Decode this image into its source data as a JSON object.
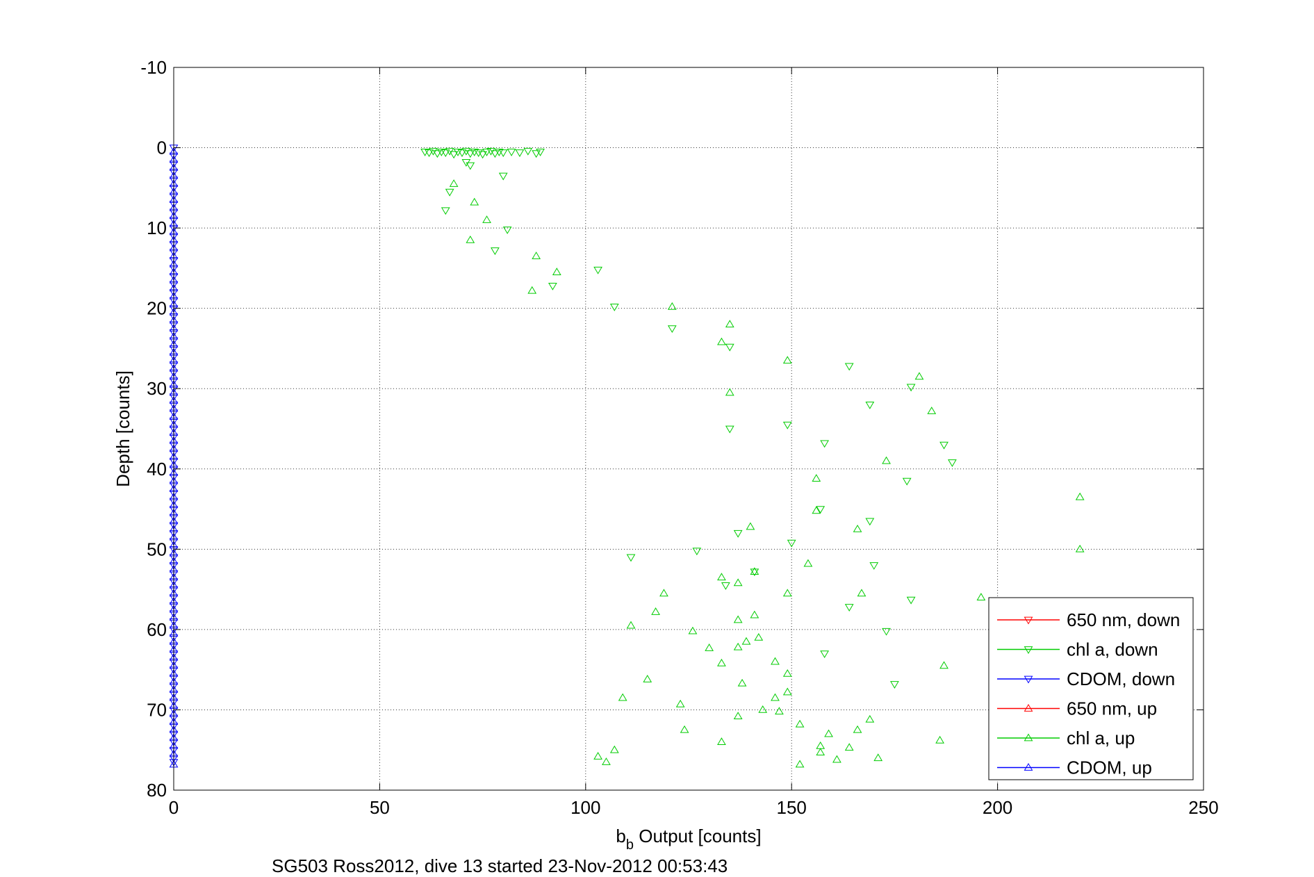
{
  "chart_data": {
    "type": "scatter",
    "xlabel_main": "b",
    "xlabel_sub": "b",
    "xlabel_rest": " Output [counts]",
    "ylabel": "Depth [counts]",
    "caption": "SG503 Ross2012, dive 13 started 23-Nov-2012 00:53:43",
    "xlim": [
      0,
      250
    ],
    "ylim": [
      -10,
      80
    ],
    "y_reversed": true,
    "grid": true,
    "legend_position": "bottom-right",
    "xticks": [
      0,
      50,
      100,
      150,
      200,
      250
    ],
    "xtick_labels": [
      "0",
      "50",
      "100",
      "150",
      "200",
      "250"
    ],
    "yticks": [
      -10,
      0,
      10,
      20,
      30,
      40,
      50,
      60,
      70,
      80
    ],
    "ytick_labels": [
      "-10",
      "0",
      "10",
      "20",
      "30",
      "40",
      "50",
      "60",
      "70",
      "80"
    ],
    "series": [
      {
        "name": "650 nm, down",
        "color": "#ff0000",
        "marker": "triangle-down",
        "points": []
      },
      {
        "name": "chl a, down",
        "color": "#00cc00",
        "marker": "triangle-down",
        "points": [
          [
            61,
            0.5
          ],
          [
            62,
            0.6
          ],
          [
            63,
            0.4
          ],
          [
            64,
            0.7
          ],
          [
            65,
            0.5
          ],
          [
            66,
            0.6
          ],
          [
            67,
            0.4
          ],
          [
            68,
            0.8
          ],
          [
            69,
            0.5
          ],
          [
            70,
            0.6
          ],
          [
            71,
            0.4
          ],
          [
            72,
            0.7
          ],
          [
            73,
            0.5
          ],
          [
            74,
            0.6
          ],
          [
            75,
            0.8
          ],
          [
            76,
            0.5
          ],
          [
            77,
            0.4
          ],
          [
            78,
            0.7
          ],
          [
            79,
            0.5
          ],
          [
            80,
            0.6
          ],
          [
            82,
            0.5
          ],
          [
            84,
            0.6
          ],
          [
            86,
            0.4
          ],
          [
            88,
            0.7
          ],
          [
            89,
            0.5
          ],
          [
            71,
            1.8
          ],
          [
            72,
            2.2
          ],
          [
            80,
            3.5
          ],
          [
            67,
            5.5
          ],
          [
            66,
            7.8
          ],
          [
            81,
            10.2
          ],
          [
            78,
            12.8
          ],
          [
            92,
            17.2
          ],
          [
            103,
            15.2
          ],
          [
            107,
            19.8
          ],
          [
            121,
            22.5
          ],
          [
            135,
            24.8
          ],
          [
            149,
            34.5
          ],
          [
            135,
            35.0
          ],
          [
            164,
            27.2
          ],
          [
            169,
            32.0
          ],
          [
            179,
            29.8
          ],
          [
            158,
            36.8
          ],
          [
            187,
            37.0
          ],
          [
            189,
            39.2
          ],
          [
            178,
            41.5
          ],
          [
            157,
            45.0
          ],
          [
            137,
            48.0
          ],
          [
            150,
            49.2
          ],
          [
            111,
            51.0
          ],
          [
            127,
            50.2
          ],
          [
            170,
            52.0
          ],
          [
            169,
            46.5
          ],
          [
            134,
            54.5
          ],
          [
            141,
            52.8
          ],
          [
            179,
            56.3
          ],
          [
            158,
            63.0
          ],
          [
            173,
            60.2
          ],
          [
            175,
            66.8
          ],
          [
            164,
            57.2
          ]
        ]
      },
      {
        "name": "CDOM, down",
        "color": "#0000ff",
        "marker": "triangle-down",
        "points": [
          [
            0,
            0.0
          ],
          [
            0,
            1.0
          ],
          [
            0,
            2.0
          ],
          [
            0,
            3.0
          ],
          [
            0,
            4.0
          ],
          [
            0,
            5.0
          ],
          [
            0,
            6.0
          ],
          [
            0,
            7.0
          ],
          [
            0,
            8.0
          ],
          [
            0,
            9.0
          ],
          [
            0,
            10.0
          ],
          [
            0,
            11.0
          ],
          [
            0,
            12.0
          ],
          [
            0,
            13.0
          ],
          [
            0,
            14.0
          ],
          [
            0,
            15.0
          ],
          [
            0,
            16.0
          ],
          [
            0,
            17.0
          ],
          [
            0,
            18.0
          ],
          [
            0,
            19.0
          ],
          [
            0,
            20.0
          ],
          [
            0,
            21.0
          ],
          [
            0,
            22.0
          ],
          [
            0,
            23.0
          ],
          [
            0,
            24.0
          ],
          [
            0,
            25.0
          ],
          [
            0,
            26.0
          ],
          [
            0,
            27.0
          ],
          [
            0,
            28.0
          ],
          [
            0,
            29.0
          ],
          [
            0,
            30.0
          ],
          [
            0,
            31.0
          ],
          [
            0,
            32.0
          ],
          [
            0,
            33.0
          ],
          [
            0,
            34.0
          ],
          [
            0,
            35.0
          ],
          [
            0,
            36.0
          ],
          [
            0,
            37.0
          ],
          [
            0,
            38.0
          ],
          [
            0,
            39.0
          ],
          [
            0,
            40.0
          ],
          [
            0,
            41.0
          ],
          [
            0,
            42.0
          ],
          [
            0,
            43.0
          ],
          [
            0,
            44.0
          ],
          [
            0,
            45.0
          ],
          [
            0,
            46.0
          ],
          [
            0,
            47.0
          ],
          [
            0,
            48.0
          ],
          [
            0,
            49.0
          ],
          [
            0,
            50.0
          ],
          [
            0,
            51.0
          ],
          [
            0,
            52.0
          ],
          [
            0,
            53.0
          ],
          [
            0,
            54.0
          ],
          [
            0,
            55.0
          ],
          [
            0,
            56.0
          ],
          [
            0,
            57.0
          ],
          [
            0,
            58.0
          ],
          [
            0,
            59.0
          ],
          [
            0,
            60.0
          ],
          [
            0,
            61.0
          ],
          [
            0,
            62.0
          ],
          [
            0,
            63.0
          ],
          [
            0,
            64.0
          ],
          [
            0,
            65.0
          ],
          [
            0,
            66.0
          ],
          [
            0,
            67.0
          ],
          [
            0,
            68.0
          ],
          [
            0,
            69.0
          ],
          [
            0,
            70.0
          ],
          [
            0,
            71.0
          ],
          [
            0,
            72.0
          ],
          [
            0,
            73.0
          ],
          [
            0,
            74.0
          ],
          [
            0,
            75.0
          ],
          [
            0,
            76.0
          ],
          [
            0,
            76.5
          ]
        ]
      },
      {
        "name": "650 nm, up",
        "color": "#ff0000",
        "marker": "triangle-up",
        "points": []
      },
      {
        "name": "chl a, up",
        "color": "#00cc00",
        "marker": "triangle-up",
        "points": [
          [
            68,
            4.5
          ],
          [
            73,
            6.8
          ],
          [
            76,
            9.0
          ],
          [
            72,
            11.5
          ],
          [
            88,
            13.5
          ],
          [
            93,
            15.5
          ],
          [
            87,
            17.8
          ],
          [
            121,
            19.8
          ],
          [
            135,
            22.0
          ],
          [
            133,
            24.2
          ],
          [
            149,
            26.5
          ],
          [
            135,
            30.5
          ],
          [
            181,
            28.5
          ],
          [
            184,
            32.8
          ],
          [
            173,
            39.0
          ],
          [
            156,
            41.2
          ],
          [
            156,
            45.2
          ],
          [
            140,
            47.2
          ],
          [
            166,
            47.5
          ],
          [
            154,
            51.8
          ],
          [
            220,
            43.5
          ],
          [
            220,
            50.0
          ],
          [
            133,
            53.5
          ],
          [
            137,
            54.2
          ],
          [
            141,
            52.8
          ],
          [
            119,
            55.5
          ],
          [
            117,
            57.8
          ],
          [
            111,
            59.5
          ],
          [
            126,
            60.2
          ],
          [
            130,
            62.3
          ],
          [
            137,
            62.2
          ],
          [
            139,
            61.5
          ],
          [
            141,
            58.2
          ],
          [
            137,
            58.8
          ],
          [
            142,
            61.0
          ],
          [
            149,
            55.5
          ],
          [
            167,
            55.5
          ],
          [
            146,
            64.0
          ],
          [
            149,
            65.5
          ],
          [
            133,
            64.2
          ],
          [
            138,
            66.7
          ],
          [
            115,
            66.2
          ],
          [
            109,
            68.5
          ],
          [
            123,
            69.3
          ],
          [
            146,
            68.5
          ],
          [
            149,
            67.8
          ],
          [
            143,
            70.0
          ],
          [
            147,
            70.2
          ],
          [
            137,
            70.8
          ],
          [
            124,
            72.5
          ],
          [
            133,
            74.0
          ],
          [
            152,
            71.8
          ],
          [
            159,
            73.0
          ],
          [
            157,
            74.5
          ],
          [
            157,
            75.3
          ],
          [
            164,
            74.7
          ],
          [
            166,
            72.5
          ],
          [
            169,
            71.2
          ],
          [
            161,
            76.2
          ],
          [
            171,
            76.0
          ],
          [
            186,
            73.8
          ],
          [
            187,
            64.5
          ],
          [
            196,
            56.0
          ],
          [
            103,
            75.8
          ],
          [
            105,
            76.5
          ],
          [
            107,
            75.0
          ],
          [
            152,
            76.8
          ]
        ]
      },
      {
        "name": "CDOM, up",
        "color": "#0000ff",
        "marker": "triangle-up",
        "points": [
          [
            0,
            0.5
          ],
          [
            0,
            1.5
          ],
          [
            0,
            2.5
          ],
          [
            0,
            3.5
          ],
          [
            0,
            4.5
          ],
          [
            0,
            5.5
          ],
          [
            0,
            6.5
          ],
          [
            0,
            7.5
          ],
          [
            0,
            8.5
          ],
          [
            0,
            9.5
          ],
          [
            0,
            10.5
          ],
          [
            0,
            11.5
          ],
          [
            0,
            12.5
          ],
          [
            0,
            13.5
          ],
          [
            0,
            14.5
          ],
          [
            0,
            15.5
          ],
          [
            0,
            16.5
          ],
          [
            0,
            17.5
          ],
          [
            0,
            18.5
          ],
          [
            0,
            19.5
          ],
          [
            0,
            20.5
          ],
          [
            0,
            21.5
          ],
          [
            0,
            22.5
          ],
          [
            0,
            23.5
          ],
          [
            0,
            24.5
          ],
          [
            0,
            25.5
          ],
          [
            0,
            26.5
          ],
          [
            0,
            27.5
          ],
          [
            0,
            28.5
          ],
          [
            0,
            29.5
          ],
          [
            0,
            30.5
          ],
          [
            0,
            31.5
          ],
          [
            0,
            32.5
          ],
          [
            0,
            33.5
          ],
          [
            0,
            34.5
          ],
          [
            0,
            35.5
          ],
          [
            0,
            36.5
          ],
          [
            0,
            37.5
          ],
          [
            0,
            38.5
          ],
          [
            0,
            39.5
          ],
          [
            0,
            40.5
          ],
          [
            0,
            41.5
          ],
          [
            0,
            42.5
          ],
          [
            0,
            43.5
          ],
          [
            0,
            44.5
          ],
          [
            0,
            45.5
          ],
          [
            0,
            46.5
          ],
          [
            0,
            47.5
          ],
          [
            0,
            48.5
          ],
          [
            0,
            49.5
          ],
          [
            0,
            50.5
          ],
          [
            0,
            51.5
          ],
          [
            0,
            52.5
          ],
          [
            0,
            53.5
          ],
          [
            0,
            54.5
          ],
          [
            0,
            55.5
          ],
          [
            0,
            56.5
          ],
          [
            0,
            57.5
          ],
          [
            0,
            58.5
          ],
          [
            0,
            59.5
          ],
          [
            0,
            60.5
          ],
          [
            0,
            61.5
          ],
          [
            0,
            62.5
          ],
          [
            0,
            63.5
          ],
          [
            0,
            64.5
          ],
          [
            0,
            65.5
          ],
          [
            0,
            66.5
          ],
          [
            0,
            67.5
          ],
          [
            0,
            68.5
          ],
          [
            0,
            69.5
          ],
          [
            0,
            70.5
          ],
          [
            0,
            71.5
          ],
          [
            0,
            72.5
          ],
          [
            0,
            73.5
          ],
          [
            0,
            74.5
          ],
          [
            0,
            75.5
          ],
          [
            0,
            76.8
          ]
        ]
      }
    ]
  }
}
